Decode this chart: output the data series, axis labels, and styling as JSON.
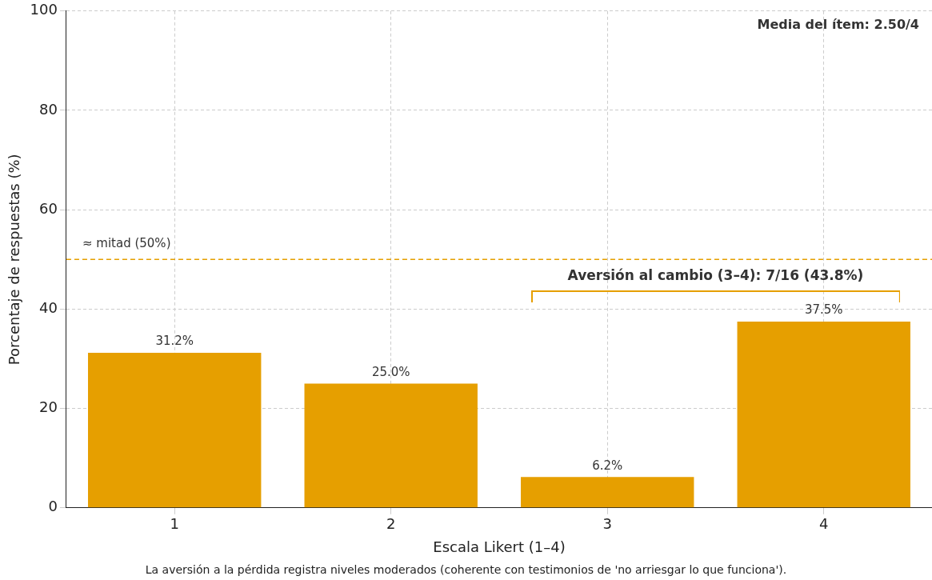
{
  "chart_data": {
    "type": "bar",
    "xlabel": "Escala Likert (1–4)",
    "ylabel": "Porcentaje de respuestas (%)",
    "categories": [
      "1",
      "2",
      "3",
      "4"
    ],
    "values": [
      31.2,
      25.0,
      6.2,
      37.5
    ],
    "value_labels": [
      "31.2%",
      "25.0%",
      "6.2%",
      "37.5%"
    ],
    "color": "#e69f00",
    "ylim": [
      0,
      100
    ],
    "yticks": [
      0,
      20,
      40,
      60,
      80,
      100
    ],
    "grid": true,
    "ref_lines": [
      {
        "axis": "y",
        "value": 50,
        "label": "≈ mitad (50%)",
        "color": "#e69f00",
        "line_style": "dashed"
      }
    ],
    "annotations": [
      "Media del ítem: 2.50/4",
      "Aversión al cambio (3–4): 7/16 (43.8%)",
      "La aversión a la pérdida registra niveles moderados (coherente con testimonios de 'no arriesgar lo que funciona')."
    ]
  }
}
